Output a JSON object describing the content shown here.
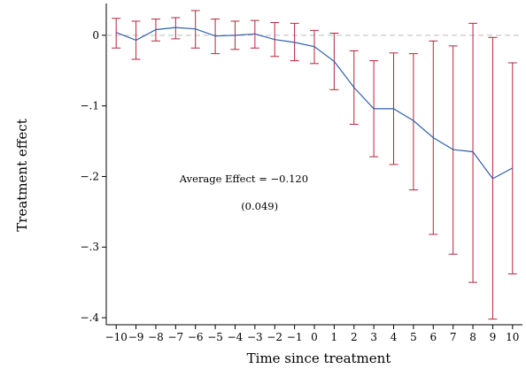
{
  "chart_data": {
    "type": "line",
    "xlabel": "Time since treatment",
    "ylabel": "Treatment effect",
    "x": [
      -10,
      -9,
      -8,
      -7,
      -6,
      -5,
      -4,
      -3,
      -2,
      -1,
      0,
      1,
      2,
      3,
      4,
      5,
      6,
      7,
      8,
      9,
      10
    ],
    "x_tick_labels": [
      "−10",
      "−9",
      "−8",
      "−7",
      "−6",
      "−5",
      "−4",
      "−3",
      "−2",
      "−1",
      "0",
      "1",
      "2",
      "3",
      "4",
      "5",
      "6",
      "7",
      "8",
      "9",
      "10"
    ],
    "y_ticks": [
      0,
      -0.1,
      -0.2,
      -0.3,
      -0.4
    ],
    "y_tick_labels": [
      "0",
      "−.1",
      "−.2",
      "−.3",
      "−.4"
    ],
    "xlim": [
      -10.5,
      10.5
    ],
    "ylim": [
      -0.41,
      0.045
    ],
    "grid": false,
    "reference_line": {
      "y": 0,
      "style": "dashed",
      "color": "#c8c8c8"
    },
    "series": [
      {
        "values": [
          0.004,
          -0.007,
          0.008,
          0.011,
          0.009,
          -0.001,
          0.0,
          0.002,
          -0.006,
          -0.01,
          -0.016,
          -0.037,
          -0.074,
          -0.104,
          -0.104,
          -0.121,
          -0.145,
          -0.162,
          -0.165,
          -0.203,
          -0.188
        ],
        "lower": [
          -0.018,
          -0.034,
          -0.008,
          -0.005,
          -0.018,
          -0.026,
          -0.02,
          -0.018,
          -0.03,
          -0.036,
          -0.04,
          -0.077,
          -0.126,
          -0.172,
          -0.183,
          -0.219,
          -0.282,
          -0.31,
          -0.35,
          -0.402,
          -0.338
        ],
        "upper": [
          0.024,
          0.02,
          0.023,
          0.025,
          0.035,
          0.023,
          0.02,
          0.021,
          0.018,
          0.017,
          0.007,
          0.003,
          -0.022,
          -0.036,
          -0.025,
          -0.026,
          -0.008,
          -0.015,
          0.017,
          -0.003,
          -0.039
        ],
        "line_color": "#2f5fa7",
        "error_bar_color": "#b5243c"
      }
    ],
    "annotations": [
      {
        "text": "Average Effect = −0.120",
        "x": -6.8,
        "y": -0.208
      },
      {
        "text": "(0.049)",
        "x": -3.7,
        "y": -0.247
      }
    ]
  }
}
